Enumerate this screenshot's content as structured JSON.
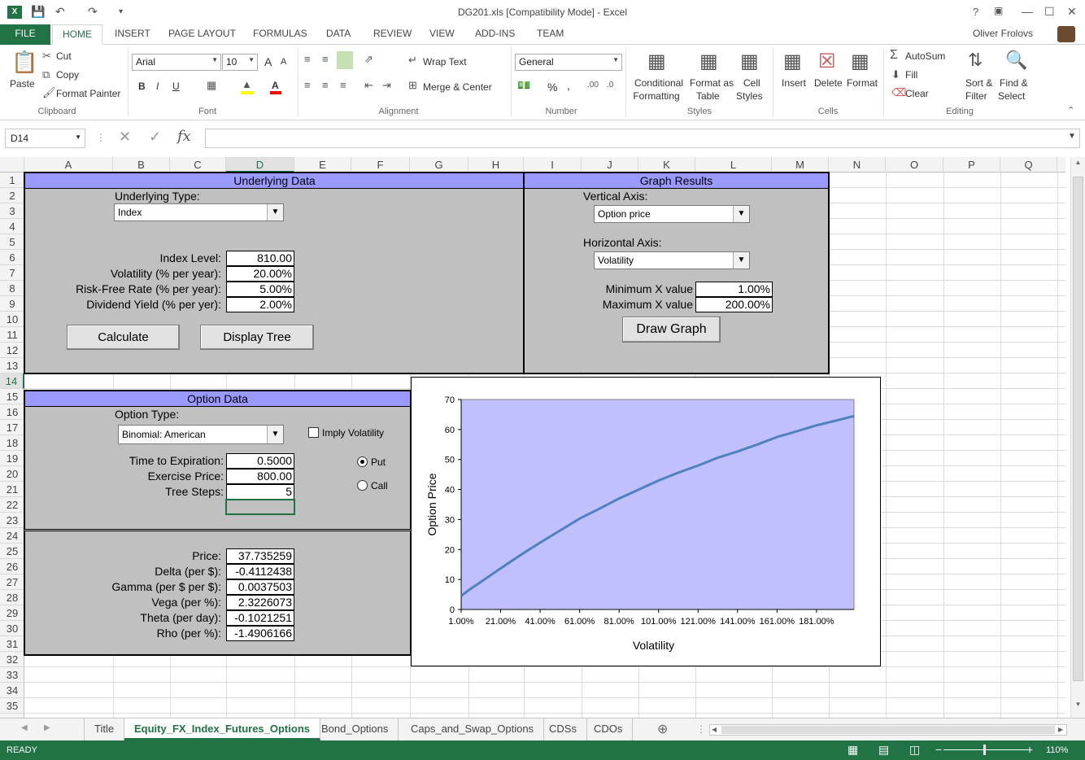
{
  "window": {
    "title": "DG201.xls  [Compatibility Mode] - Excel",
    "user": "Oliver Frolovs",
    "help": "?"
  },
  "ribbon_tabs": [
    "FILE",
    "HOME",
    "INSERT",
    "PAGE LAYOUT",
    "FORMULAS",
    "DATA",
    "REVIEW",
    "VIEW",
    "ADD-INS",
    "TEAM"
  ],
  "clipboard": {
    "paste": "Paste",
    "cut": "Cut",
    "copy": "Copy",
    "format_painter": "Format Painter",
    "group": "Clipboard"
  },
  "font": {
    "name": "Arial",
    "size": "10",
    "bold": "B",
    "italic": "I",
    "underline": "U",
    "grow": "A",
    "shrink": "A",
    "group": "Font"
  },
  "alignment": {
    "wrap": "Wrap Text",
    "merge": "Merge & Center",
    "group": "Alignment"
  },
  "number": {
    "format": "General",
    "percent": "%",
    "comma": ",",
    "group": "Number"
  },
  "styles": {
    "conditional1": "Conditional",
    "conditional2": "Formatting",
    "format_table1": "Format as",
    "format_table2": "Table",
    "cell_styles1": "Cell",
    "cell_styles2": "Styles",
    "group": "Styles"
  },
  "cells": {
    "insert": "Insert",
    "delete": "Delete",
    "format": "Format",
    "group": "Cells"
  },
  "editing": {
    "autosum": "AutoSum",
    "fill": "Fill",
    "clear": "Clear",
    "sort1": "Sort &",
    "sort2": "Filter",
    "find1": "Find &",
    "find2": "Select",
    "group": "Editing"
  },
  "formula_bar": {
    "name_box": "D14",
    "fx": "fx",
    "formula": ""
  },
  "columns": [
    "A",
    "B",
    "C",
    "D",
    "E",
    "F",
    "G",
    "H",
    "I",
    "J",
    "K",
    "L",
    "M",
    "N",
    "O",
    "P",
    "Q"
  ],
  "rows": [
    "1",
    "2",
    "3",
    "4",
    "5",
    "6",
    "7",
    "8",
    "9",
    "10",
    "11",
    "12",
    "13",
    "14",
    "15",
    "16",
    "17",
    "18",
    "19",
    "20",
    "21",
    "22",
    "23",
    "24",
    "25",
    "26",
    "27",
    "28",
    "29",
    "30",
    "31",
    "32",
    "33",
    "34",
    "35"
  ],
  "underlying": {
    "header": "Underlying Data",
    "type_label": "Underlying Type:",
    "type_value": "Index",
    "index_level_label": "Index Level:",
    "index_level": "810.00",
    "vol_label": "Volatility (% per year):",
    "vol": "20.00%",
    "rf_label": "Risk-Free Rate (% per year):",
    "rf": "5.00%",
    "div_label": "Dividend Yield (% per yer):",
    "div": "2.00%",
    "calc_btn": "Calculate",
    "tree_btn": "Display Tree"
  },
  "graph_results": {
    "header": "Graph Results",
    "vaxis_label": "Vertical Axis:",
    "vaxis_value": "Option price",
    "haxis_label": "Horizontal Axis:",
    "haxis_value": "Volatility",
    "min_label": "Minimum X value",
    "min": "1.00%",
    "max_label": "Maximum X value",
    "max": "200.00%",
    "draw_btn": "Draw Graph"
  },
  "option": {
    "header": "Option Data",
    "type_label": "Option Type:",
    "type_value": "Binomial: American",
    "imply": "Imply Volatility",
    "tte_label": "Time to Expiration:",
    "tte": "0.5000",
    "strike_label": "Exercise Price:",
    "strike": "800.00",
    "steps_label": "Tree Steps:",
    "steps": "5",
    "put": "Put",
    "call": "Call"
  },
  "results": {
    "price_label": "Price:",
    "price": "37.735259",
    "delta_label": "Delta (per $):",
    "delta": "-0.4112438",
    "gamma_label": "Gamma (per $ per $):",
    "gamma": "0.0037503",
    "vega_label": "Vega (per %):",
    "vega": "2.3226073",
    "theta_label": "Theta (per day):",
    "theta": "-0.1021251",
    "rho_label": "Rho (per %):",
    "rho": "-1.4906166"
  },
  "chart_data": {
    "type": "line",
    "title": "",
    "xlabel": "Volatility",
    "ylabel": "Option Price",
    "ylim": [
      0,
      70
    ],
    "xlim": [
      1,
      200
    ],
    "yticks": [
      "0",
      "10",
      "20",
      "30",
      "40",
      "50",
      "60",
      "70"
    ],
    "xticks": [
      "1.00%",
      "21.00%",
      "41.00%",
      "61.00%",
      "81.00%",
      "101.00%",
      "121.00%",
      "141.00%",
      "161.00%",
      "181.00%"
    ],
    "series": [
      {
        "x": [
          1,
          5,
          11,
          21,
          31,
          41,
          51,
          61,
          71,
          81,
          91,
          101,
          111,
          121,
          131,
          141,
          151,
          161,
          171,
          181,
          191,
          200
        ],
        "y": [
          4.5,
          6.5,
          9.2,
          13.7,
          18.1,
          22.3,
          26.3,
          30.3,
          33.6,
          37.0,
          40.0,
          43.0,
          45.6,
          48.0,
          50.6,
          52.7,
          55.0,
          57.5,
          59.4,
          61.4,
          63.0,
          64.5
        ]
      }
    ],
    "colors": {
      "plot_bg": "#c0c0ff",
      "line": "#4f81bd"
    }
  },
  "sheet_tabs": [
    "Title",
    "Equity_FX_Index_Futures_Options",
    "Bond_Options",
    "Caps_and_Swap_Options",
    "CDSs",
    "CDOs"
  ],
  "status": {
    "ready": "READY",
    "zoom": "110%"
  }
}
